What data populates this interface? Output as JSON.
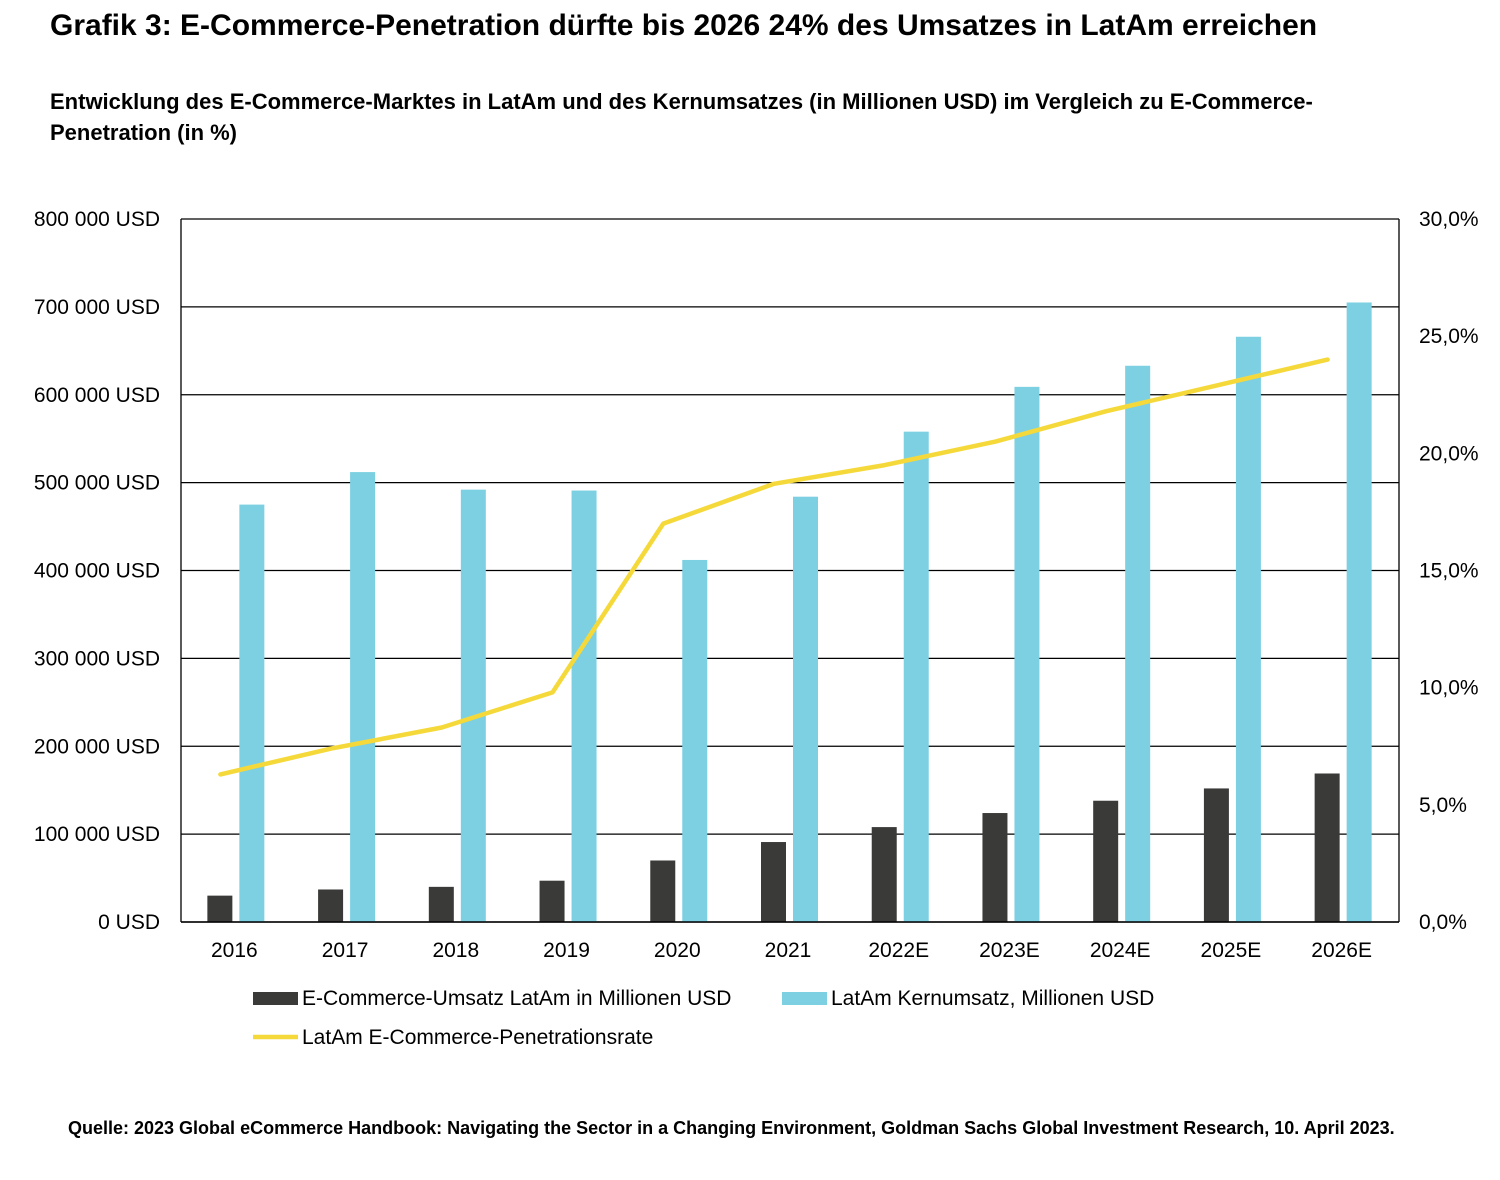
{
  "header": {
    "title": "Grafik 3: E-Commerce-Penetration dürfte bis 2026 24% des Umsatzes in LatAm erreichen",
    "subtitle": "Entwicklung des E-Commerce-Marktes in LatAm und des Kernumsatzes (in Millionen USD) im Vergleich zu E-Commerce-Penetration (in %)"
  },
  "footer": {
    "source": "Quelle: 2023 Global eCommerce Handbook: Navigating the Sector in a Changing Environment, Goldman Sachs Global Investment Research, 10. April 2023."
  },
  "chart_data": {
    "type": "bar",
    "categories": [
      "2016",
      "2017",
      "2018",
      "2019",
      "2020",
      "2021",
      "2022E",
      "2023E",
      "2024E",
      "2025E",
      "2026E"
    ],
    "series": [
      {
        "name": "E-Commerce-Umsatz LatAm in Millionen USD",
        "type": "bar",
        "axis": "left",
        "color": "#3a3b38",
        "values": [
          30000,
          37000,
          40000,
          47000,
          70000,
          91000,
          108000,
          124000,
          138000,
          152000,
          169000
        ]
      },
      {
        "name": "LatAm Kernumsatz, Millionen USD",
        "type": "bar",
        "axis": "left",
        "color": "#7dd0e2",
        "values": [
          475000,
          512000,
          492000,
          491000,
          412000,
          484000,
          558000,
          609000,
          633000,
          666000,
          705000
        ]
      },
      {
        "name": "LatAm E-Commerce-Penetrationsrate",
        "type": "line",
        "axis": "right",
        "color": "#f5d93a",
        "values": [
          6.3,
          7.4,
          8.3,
          9.8,
          17.0,
          18.7,
          19.5,
          20.5,
          21.8,
          22.9,
          24.0
        ]
      }
    ],
    "y_left": {
      "lim": [
        0,
        800000
      ],
      "ticks": [
        0,
        100000,
        200000,
        300000,
        400000,
        500000,
        600000,
        700000,
        800000
      ],
      "tick_labels": [
        "0 USD",
        "100 000 USD",
        "200 000 USD",
        "300 000 USD",
        "400 000 USD",
        "500 000 USD",
        "600 000 USD",
        "700 000 USD",
        "800 000 USD"
      ]
    },
    "y_right": {
      "lim": [
        0,
        30
      ],
      "ticks": [
        0,
        5,
        10,
        15,
        20,
        25,
        30
      ],
      "tick_labels": [
        "0,0%",
        "5,0%",
        "10,0%",
        "15,0%",
        "20,0%",
        "25,0%",
        "30,0%"
      ]
    },
    "grid": true,
    "legend_position": "bottom"
  }
}
